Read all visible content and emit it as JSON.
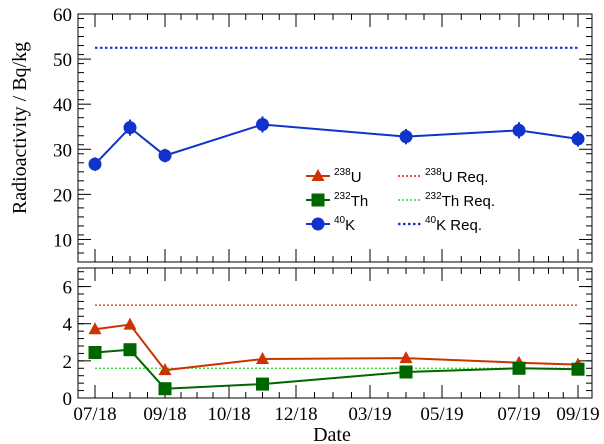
{
  "chart_data": {
    "type": "line",
    "xlabel": "Date",
    "ylabel": "Radioactivity / Bq/kg",
    "x_ticks": [
      "07/18",
      "09/18",
      "10/18",
      "12/18",
      "03/19",
      "05/19",
      "07/19",
      "09/19"
    ],
    "colors": {
      "U": "#cc3300",
      "Th": "#006600",
      "K": "#1133cc",
      "U_req": "#dd2200",
      "Th_req": "#22dd22",
      "K_req": "#1133dd"
    },
    "legend": [
      {
        "key": "U",
        "sup": "238",
        "label": "U",
        "marker": "triangle"
      },
      {
        "key": "Th",
        "sup": "232",
        "label": "Th",
        "marker": "square"
      },
      {
        "key": "K",
        "sup": "40",
        "label": "K",
        "marker": "circle"
      },
      {
        "key": "U_req",
        "sup": "238",
        "label": "U Req.",
        "style": "dotted"
      },
      {
        "key": "Th_req",
        "sup": "232",
        "label": "Th Req.",
        "style": "dotted"
      },
      {
        "key": "K_req",
        "sup": "40",
        "label": "K Req.",
        "style": "dotted"
      }
    ],
    "top_panel": {
      "ylim": [
        5,
        60
      ],
      "y_ticks": [
        10,
        20,
        30,
        40,
        50,
        60
      ],
      "series": [
        {
          "key": "K",
          "x": [
            "07/18",
            "08/18",
            "09/18",
            "11/18",
            "04/19",
            "07/19",
            "09/19"
          ],
          "y": [
            26.7,
            34.8,
            28.6,
            35.5,
            32.8,
            34.2,
            32.3
          ],
          "yerr": [
            1.5,
            1.8,
            1.5,
            1.8,
            1.7,
            1.8,
            1.7
          ]
        }
      ],
      "requirements": [
        {
          "key": "K_req",
          "value": 52.5
        }
      ]
    },
    "bottom_panel": {
      "ylim": [
        0,
        7
      ],
      "y_ticks": [
        0,
        2,
        4,
        6
      ],
      "series": [
        {
          "key": "U",
          "x": [
            "07/18",
            "08/18",
            "09/18",
            "11/18",
            "04/19",
            "07/19",
            "09/19"
          ],
          "y": [
            3.7,
            3.95,
            1.5,
            2.1,
            2.15,
            1.9,
            1.8
          ]
        },
        {
          "key": "Th",
          "x": [
            "07/18",
            "08/18",
            "09/18",
            "11/18",
            "04/19",
            "07/19",
            "09/19"
          ],
          "y": [
            2.45,
            2.6,
            0.5,
            0.75,
            1.4,
            1.6,
            1.55
          ]
        }
      ],
      "requirements": [
        {
          "key": "U_req",
          "value": 5.0
        },
        {
          "key": "Th_req",
          "value": 1.6
        }
      ]
    }
  }
}
